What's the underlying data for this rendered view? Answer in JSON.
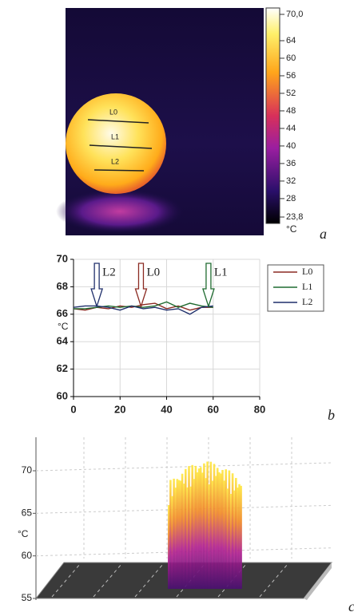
{
  "chart_data": [
    {
      "type": "thermal-image",
      "panel_label": "a",
      "profile_lines": [
        "L0",
        "L1",
        "L2"
      ],
      "clim": [
        23.8,
        70
      ],
      "unit": "°C",
      "cticks": [
        {
          "value": 70,
          "label": "70,0"
        },
        64,
        60,
        56,
        52,
        48,
        44,
        40,
        36,
        32,
        28,
        {
          "value": 23.8,
          "label": "23,8"
        }
      ]
    },
    {
      "type": "line",
      "panel_label": "b",
      "ylabel": "°C",
      "x": [
        0,
        5,
        10,
        15,
        20,
        25,
        30,
        35,
        40,
        45,
        50,
        55,
        60
      ],
      "series": [
        {
          "name": "L0",
          "color": "#8b2a22",
          "values": [
            66.4,
            66.3,
            66.5,
            66.4,
            66.6,
            66.5,
            66.7,
            66.8,
            66.4,
            66.6,
            66.3,
            66.5,
            66.5
          ]
        },
        {
          "name": "L1",
          "color": "#1f6b30",
          "values": [
            66.4,
            66.4,
            66.5,
            66.6,
            66.5,
            66.6,
            66.5,
            66.6,
            66.9,
            66.5,
            66.8,
            66.6,
            66.5
          ]
        },
        {
          "name": "L2",
          "color": "#1f2f6b",
          "values": [
            66.5,
            66.6,
            66.6,
            66.5,
            66.3,
            66.6,
            66.4,
            66.5,
            66.3,
            66.4,
            66.0,
            66.5,
            66.6
          ]
        }
      ],
      "annotations": [
        {
          "text": "L2",
          "x": 10,
          "color": "#1f2f6b"
        },
        {
          "text": "L0",
          "x": 29,
          "color": "#8b2a22"
        },
        {
          "text": "L1",
          "x": 58,
          "color": "#1f6b30"
        }
      ],
      "xlim": [
        0,
        80
      ],
      "xticks": [
        0,
        20,
        40,
        60,
        80
      ],
      "ylim": [
        60,
        70
      ],
      "yticks": [
        60,
        62,
        64,
        66,
        68,
        70
      ],
      "grid": true,
      "legend": "right"
    },
    {
      "type": "surface3d",
      "panel_label": "c",
      "zlabel": "°C",
      "zlim": [
        55,
        70
      ],
      "zticks": [
        55,
        60,
        65,
        70
      ]
    }
  ]
}
